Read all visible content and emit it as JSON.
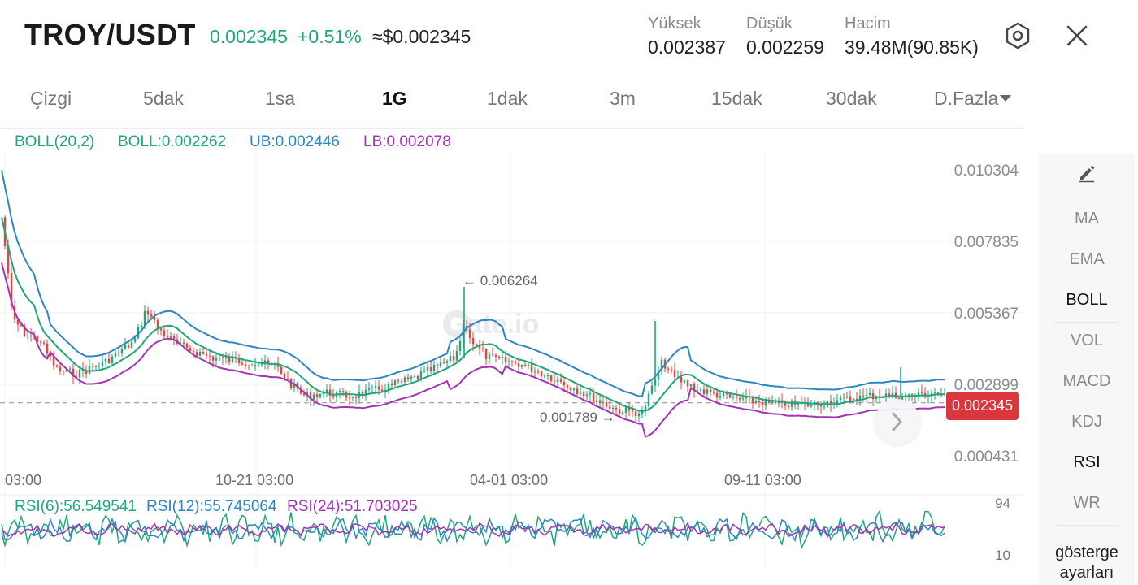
{
  "header": {
    "pair": "TROY/USDT",
    "price": "0.002345",
    "change": "+0.51%",
    "usd_price": "≈$0.002345",
    "stats": [
      {
        "label": "Yüksek",
        "value": "0.002387"
      },
      {
        "label": "Düşük",
        "value": "0.002259"
      },
      {
        "label": "Hacim",
        "value": "39.48M(90.85K)"
      }
    ],
    "settings_icon": "hexagon-gear-icon",
    "close_icon": "close-icon"
  },
  "tabs": [
    {
      "label": "Çizgi",
      "active": false
    },
    {
      "label": "5dak",
      "active": false
    },
    {
      "label": "1sa",
      "active": false
    },
    {
      "label": "1G",
      "active": true
    },
    {
      "label": "1dak",
      "active": false
    },
    {
      "label": "3m",
      "active": false
    },
    {
      "label": "15dak",
      "active": false
    },
    {
      "label": "30dak",
      "active": false
    },
    {
      "label": "D.Fazla",
      "active": false
    }
  ],
  "boll_legend": {
    "name": "BOLL(20,2)",
    "boll": "BOLL:0.002262",
    "ub": "UB:0.002446",
    "lb": "LB:0.002078"
  },
  "rsi_legend": {
    "rsi6": "RSI(6):56.549541",
    "rsi12": "RSI(12):55.745064",
    "rsi24": "RSI(24):51.703025"
  },
  "colors": {
    "up": "#1fa67a",
    "down": "#e0473e",
    "boll": "#1fa67a",
    "ub": "#2e86c1",
    "lb": "#a335b5",
    "rsi6": "#1fa67a",
    "rsi12": "#2e86c1",
    "rsi24": "#a335b5",
    "price_tag": "#d9363e"
  },
  "price_axis": [
    "0.010304",
    "0.007835",
    "0.005367",
    "0.002899",
    "0.000431"
  ],
  "time_axis": [
    "03:00",
    "10-21 03:00",
    "04-01 03:00",
    "09-11 03:00"
  ],
  "rsi_axis": {
    "top": "94",
    "bottom": "10"
  },
  "annotations": {
    "high": "← 0.006264",
    "low": "0.001789 →"
  },
  "current_price_tag": "0.002345",
  "watermark": "Gate.io",
  "sidebar": {
    "draw_icon": "pencil-icon",
    "items": [
      {
        "label": "MA",
        "active": false
      },
      {
        "label": "EMA",
        "active": false
      },
      {
        "label": "BOLL",
        "active": true
      },
      {
        "label": "VOL",
        "active": false
      },
      {
        "label": "MACD",
        "active": false
      },
      {
        "label": "KDJ",
        "active": false
      },
      {
        "label": "RSI",
        "active": true
      },
      {
        "label": "WR",
        "active": false
      }
    ],
    "settings_label": "gösterge ayarları"
  },
  "chart_data": {
    "type": "line",
    "ylim": [
      0.000431,
      0.010304
    ],
    "series": [
      {
        "name": "BOLL(20,2)",
        "last": 0.002262
      },
      {
        "name": "UB",
        "last": 0.002446
      },
      {
        "name": "LB",
        "last": 0.002078
      }
    ],
    "high_marker": 0.006264,
    "low_marker": 0.001789,
    "current_price": 0.002345
  }
}
